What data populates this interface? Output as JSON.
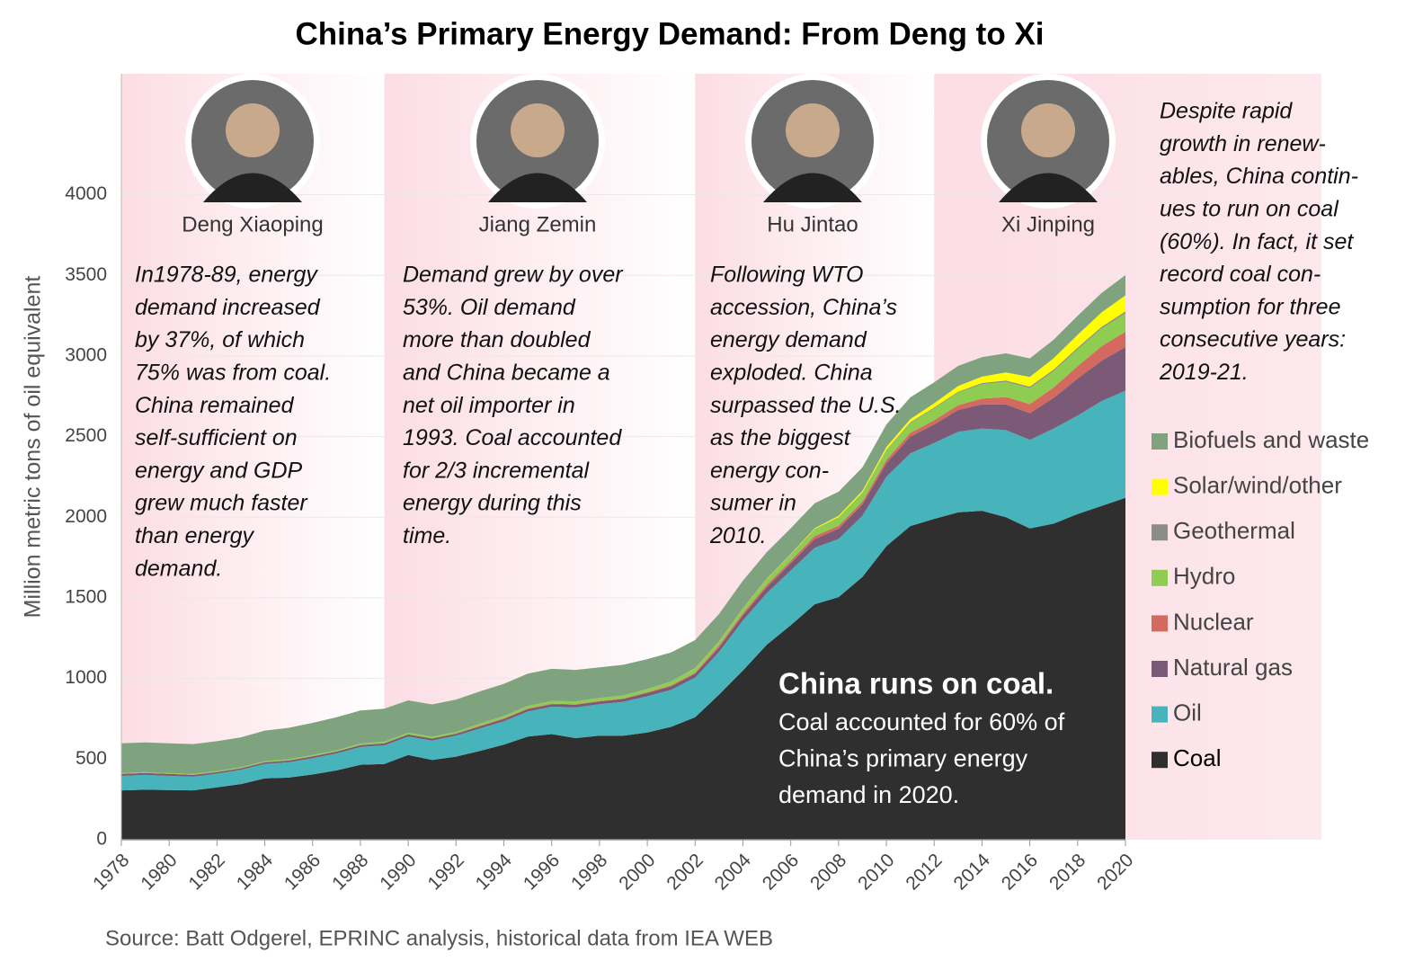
{
  "chart_data": {
    "type": "stacked-area",
    "title": "China’s Primary Energy Demand: From Deng to Xi",
    "y_label": "Million metric tons of oil equivalent",
    "source": "Source: Batt Odgerel, EPRINC analysis, historical data from IEA WEB",
    "x": [
      1978,
      1979,
      1980,
      1981,
      1982,
      1983,
      1984,
      1985,
      1986,
      1987,
      1988,
      1989,
      1990,
      1991,
      1992,
      1993,
      1994,
      1995,
      1996,
      1997,
      1998,
      1999,
      2000,
      2001,
      2002,
      2003,
      2004,
      2005,
      2006,
      2007,
      2008,
      2009,
      2010,
      2011,
      2012,
      2013,
      2014,
      2015,
      2016,
      2017,
      2018,
      2019,
      2020
    ],
    "xlim": [
      1978,
      2020
    ],
    "xticks": [
      1978,
      1980,
      1982,
      1984,
      1986,
      1988,
      1990,
      1992,
      1994,
      1996,
      1998,
      2000,
      2002,
      2004,
      2006,
      2008,
      2010,
      2012,
      2014,
      2016,
      2018,
      2020
    ],
    "ylim": [
      0,
      4750
    ],
    "yticks": [
      0,
      500,
      1000,
      1500,
      2000,
      2500,
      3000,
      3500,
      4000
    ],
    "grid": true,
    "series": [
      {
        "name": "Coal",
        "color": "#2f2f2f",
        "values": [
          306,
          310,
          308,
          306,
          325,
          345,
          380,
          385,
          405,
          430,
          465,
          470,
          525,
          495,
          515,
          550,
          590,
          640,
          655,
          630,
          645,
          645,
          665,
          700,
          760,
          900,
          1050,
          1210,
          1330,
          1460,
          1505,
          1630,
          1820,
          1945,
          1990,
          2030,
          2040,
          2000,
          1930,
          1960,
          2020,
          2070,
          2120
        ]
      },
      {
        "name": "Oil",
        "color": "#46b4ba",
        "values": [
          90,
          92,
          88,
          85,
          85,
          88,
          90,
          95,
          100,
          105,
          110,
          115,
          115,
          120,
          130,
          140,
          145,
          155,
          170,
          190,
          195,
          210,
          225,
          230,
          245,
          265,
          310,
          320,
          340,
          350,
          360,
          380,
          430,
          450,
          470,
          500,
          510,
          540,
          550,
          590,
          610,
          650,
          665
        ]
      },
      {
        "name": "Natural gas",
        "color": "#7b5a78",
        "values": [
          12,
          12,
          12,
          11,
          10,
          10,
          10,
          11,
          12,
          12,
          12,
          13,
          13,
          13,
          13,
          14,
          14,
          15,
          15,
          17,
          17,
          18,
          20,
          22,
          24,
          27,
          32,
          37,
          45,
          55,
          64,
          70,
          85,
          105,
          115,
          135,
          150,
          160,
          165,
          190,
          230,
          250,
          270
        ]
      },
      {
        "name": "Nuclear",
        "color": "#d46a5f",
        "values": [
          0,
          0,
          0,
          0,
          0,
          0,
          0,
          0,
          0,
          0,
          0,
          0,
          0,
          0,
          0,
          3,
          4,
          4,
          4,
          4,
          4,
          4,
          5,
          5,
          7,
          12,
          13,
          14,
          15,
          18,
          18,
          18,
          20,
          23,
          26,
          29,
          35,
          45,
          56,
          65,
          76,
          90,
          95
        ]
      },
      {
        "name": "Hydro",
        "color": "#8fcc52",
        "values": [
          5,
          5,
          5,
          6,
          6,
          7,
          7,
          8,
          8,
          8,
          9,
          10,
          11,
          11,
          11,
          13,
          14,
          16,
          16,
          17,
          18,
          18,
          19,
          24,
          25,
          24,
          30,
          34,
          37,
          42,
          50,
          53,
          60,
          60,
          75,
          78,
          90,
          95,
          100,
          102,
          105,
          110,
          115
        ]
      },
      {
        "name": "Geothermal",
        "color": "#8c8c8c",
        "values": [
          0,
          0,
          0,
          0,
          0,
          0,
          0,
          0,
          0,
          0,
          0,
          0,
          0,
          0,
          0,
          0,
          0,
          0,
          0,
          0,
          0,
          0,
          1,
          1,
          1,
          1,
          1,
          2,
          2,
          2,
          3,
          3,
          4,
          5,
          5,
          6,
          7,
          8,
          9,
          9,
          10,
          10,
          11
        ]
      },
      {
        "name": "Solar/wind/other",
        "color": "#ffff00",
        "values": [
          0,
          0,
          0,
          0,
          0,
          0,
          0,
          0,
          0,
          0,
          0,
          0,
          0,
          0,
          0,
          0,
          0,
          0,
          0,
          0,
          0,
          0,
          0,
          0,
          1,
          1,
          1,
          2,
          3,
          5,
          8,
          10,
          15,
          20,
          25,
          35,
          40,
          50,
          60,
          70,
          80,
          90,
          100
        ]
      },
      {
        "name": "Biofuels and waste",
        "color": "#7fa37f",
        "values": [
          185,
          185,
          185,
          185,
          185,
          185,
          190,
          195,
          200,
          205,
          205,
          205,
          200,
          200,
          200,
          200,
          200,
          200,
          200,
          195,
          190,
          190,
          185,
          180,
          175,
          170,
          170,
          165,
          160,
          155,
          150,
          145,
          140,
          135,
          130,
          125,
          120,
          118,
          115,
          115,
          118,
          120,
          125
        ]
      }
    ],
    "eras": [
      {
        "name": "Deng Xiaoping",
        "start": 1978,
        "lines": [
          "In1978-89, energy",
          "demand increased",
          "by 37%, of which",
          "75% was from coal.",
          "China remained",
          "self-sufficient on",
          "energy and GDP",
          "grew much faster",
          "than energy",
          "demand."
        ]
      },
      {
        "name": "Jiang Zemin",
        "start": 1989,
        "lines": [
          "Demand grew by over",
          "53%. Oil demand",
          "more than doubled",
          "and China became a",
          "net oil importer in",
          "1993. Coal accounted",
          "for 2/3 incremental",
          "energy during this",
          "time."
        ]
      },
      {
        "name": "Hu Jintao",
        "start": 2002,
        "lines": [
          "Following WTO",
          "accession, China’s",
          "energy demand",
          "exploded. China",
          "surpassed the U.S.",
          "as the biggest",
          "energy con-",
          "sumer in",
          "2010."
        ]
      },
      {
        "name": "Xi Jinping",
        "start": 2012,
        "lines": []
      }
    ],
    "note_lines": [
      "Despite rapid",
      "growth in renew-",
      "ables, China contin-",
      "ues to run on coal",
      "(60%). In fact, it set",
      "record coal con-",
      "sumption for three",
      "consecutive years:",
      "2019-21."
    ],
    "coal_headline": "China runs on coal.",
    "coal_lines": [
      "Coal accounted for 60% of",
      "China’s primary energy",
      "demand in 2020."
    ]
  }
}
